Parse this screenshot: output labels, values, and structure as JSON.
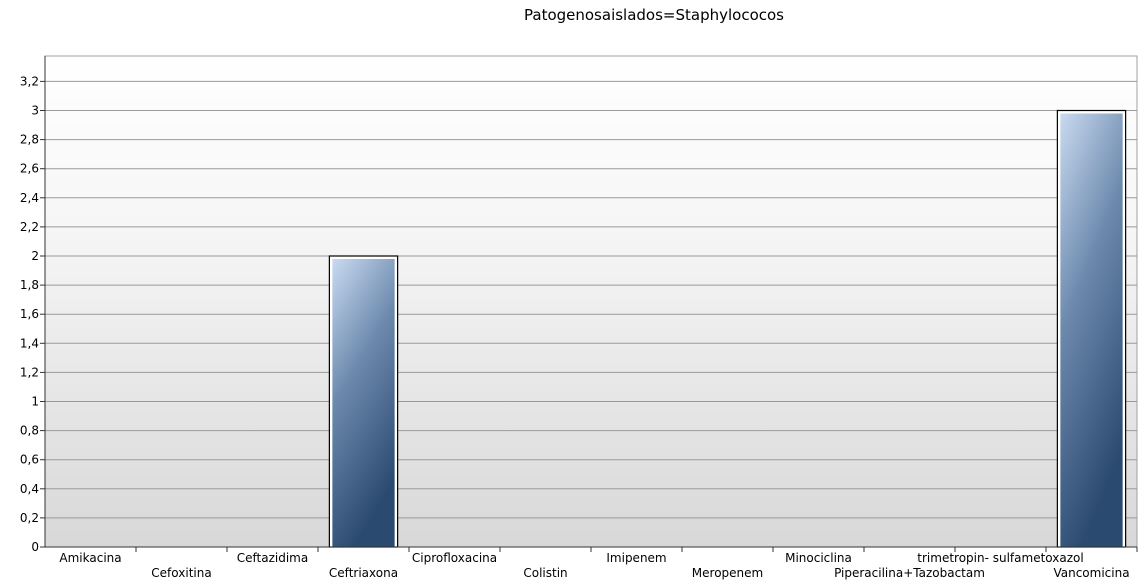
{
  "chart_data": {
    "type": "bar",
    "title": "Patogenosaislados=Staphylococos",
    "xlabel": "",
    "ylabel": "",
    "categories": [
      "Amikacina",
      "Cefoxitina",
      "Ceftazidima",
      "Ceftriaxona",
      "Ciprofloxacina",
      "Colistin",
      "Imipenem",
      "Meropenem",
      "Minociclina",
      "Piperacilina+Tazobactam",
      "trimetropin- sulfametoxazol",
      "Vancomicina"
    ],
    "values": [
      0,
      0,
      0,
      2,
      0,
      0,
      0,
      0,
      0,
      0,
      0,
      3
    ],
    "ylim": [
      0,
      3.3
    ],
    "yticks": [
      "0",
      "0,2",
      "0,4",
      "0,6",
      "0,8",
      "1",
      "1,2",
      "1,4",
      "1,6",
      "1,8",
      "2",
      "2,2",
      "2,4",
      "2,6",
      "2,8",
      "3",
      "3,2"
    ],
    "grid": true,
    "legend": "none",
    "colors": {
      "bar_light": "#c9daf0",
      "bar_dark": "#2b4a70",
      "grid": "#a0a0a0"
    }
  }
}
